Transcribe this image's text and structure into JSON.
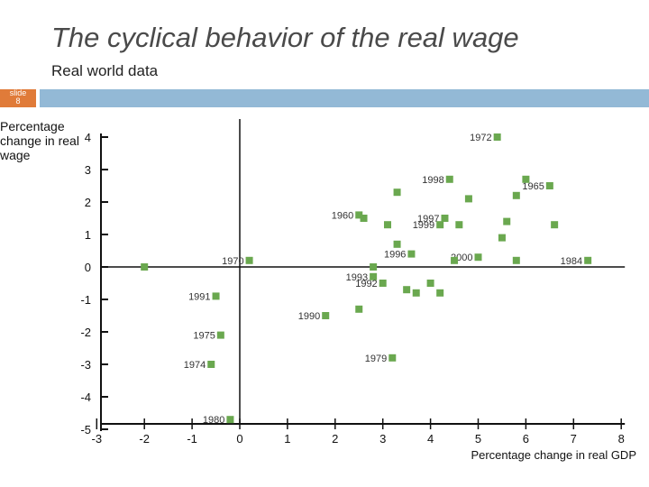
{
  "slide": {
    "title": "The cyclical behavior of the real wage",
    "subtitle": "Real world data",
    "tag_line1": "slide",
    "tag_line2": "8",
    "colors": {
      "accent_bar": "#93b9d6",
      "tag": "#e07b39",
      "marker": "#6aa84f"
    }
  },
  "chart_data": {
    "type": "scatter",
    "xlabel": "Percentage change in real GDP",
    "ylabel_lines": [
      "Percentage",
      "change in real",
      "wage"
    ],
    "xlim": [
      -3,
      8
    ],
    "ylim": [
      -5,
      4
    ],
    "x_ticks": [
      -3,
      -2,
      -1,
      0,
      1,
      2,
      3,
      4,
      5,
      6,
      7,
      8
    ],
    "y_ticks": [
      4,
      3,
      2,
      1,
      0,
      -1,
      -2,
      -3,
      -4,
      -5
    ],
    "grid": false,
    "marker_color": "#6aa84f",
    "points": [
      {
        "x": 5.4,
        "y": 4.0,
        "label": "1972"
      },
      {
        "x": 4.4,
        "y": 2.7,
        "label": "1998"
      },
      {
        "x": 6.5,
        "y": 2.5,
        "label": "1965"
      },
      {
        "x": 2.5,
        "y": 1.6,
        "label": "1960"
      },
      {
        "x": 4.3,
        "y": 1.5,
        "label": "1997"
      },
      {
        "x": 4.2,
        "y": 1.3,
        "label": "1999"
      },
      {
        "x": 3.6,
        "y": 0.4,
        "label": "1996"
      },
      {
        "x": 5.0,
        "y": 0.3,
        "label": "2000"
      },
      {
        "x": 7.3,
        "y": 0.2,
        "label": "1984"
      },
      {
        "x": 0.2,
        "y": 0.2,
        "label": "1970"
      },
      {
        "x": -2.0,
        "y": 0.0,
        "label": ""
      },
      {
        "x": 2.8,
        "y": -0.3,
        "label": "1993"
      },
      {
        "x": 3.0,
        "y": -0.5,
        "label": "1992"
      },
      {
        "x": -0.5,
        "y": -0.9,
        "label": "1991"
      },
      {
        "x": 1.8,
        "y": -1.5,
        "label": "1990"
      },
      {
        "x": -0.4,
        "y": -2.1,
        "label": "1975"
      },
      {
        "x": 3.2,
        "y": -2.8,
        "label": "1979"
      },
      {
        "x": -0.6,
        "y": -3.0,
        "label": "1974"
      },
      {
        "x": -0.2,
        "y": -4.7,
        "label": "1980"
      },
      {
        "x": 6.0,
        "y": 2.7,
        "label": ""
      },
      {
        "x": 3.3,
        "y": 2.3,
        "label": ""
      },
      {
        "x": 4.8,
        "y": 2.1,
        "label": ""
      },
      {
        "x": 5.8,
        "y": 2.2,
        "label": ""
      },
      {
        "x": 2.6,
        "y": 1.5,
        "label": ""
      },
      {
        "x": 3.1,
        "y": 1.3,
        "label": ""
      },
      {
        "x": 4.6,
        "y": 1.3,
        "label": ""
      },
      {
        "x": 5.6,
        "y": 1.4,
        "label": ""
      },
      {
        "x": 6.6,
        "y": 1.3,
        "label": ""
      },
      {
        "x": 3.3,
        "y": 0.7,
        "label": ""
      },
      {
        "x": 5.5,
        "y": 0.9,
        "label": ""
      },
      {
        "x": 4.5,
        "y": 0.2,
        "label": ""
      },
      {
        "x": 5.8,
        "y": 0.2,
        "label": ""
      },
      {
        "x": 2.8,
        "y": 0.0,
        "label": ""
      },
      {
        "x": 3.5,
        "y": -0.7,
        "label": ""
      },
      {
        "x": 4.0,
        "y": -0.5,
        "label": ""
      },
      {
        "x": 3.7,
        "y": -0.8,
        "label": ""
      },
      {
        "x": 4.2,
        "y": -0.8,
        "label": ""
      },
      {
        "x": 2.5,
        "y": -1.3,
        "label": ""
      }
    ]
  }
}
